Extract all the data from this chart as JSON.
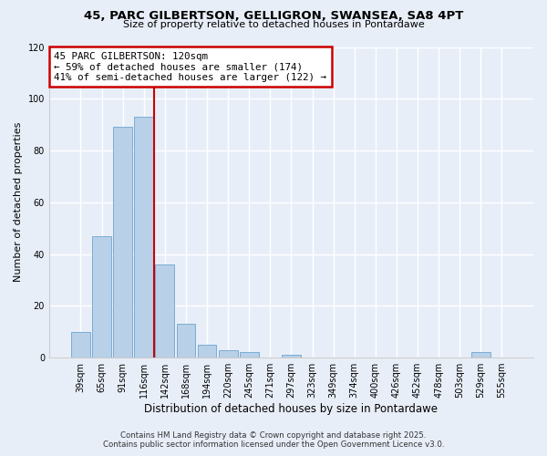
{
  "title": "45, PARC GILBERTSON, GELLIGRON, SWANSEA, SA8 4PT",
  "subtitle": "Size of property relative to detached houses in Pontardawe",
  "xlabel": "Distribution of detached houses by size in Pontardawe",
  "ylabel": "Number of detached properties",
  "categories": [
    "39sqm",
    "65sqm",
    "91sqm",
    "116sqm",
    "142sqm",
    "168sqm",
    "194sqm",
    "220sqm",
    "245sqm",
    "271sqm",
    "297sqm",
    "323sqm",
    "349sqm",
    "374sqm",
    "400sqm",
    "426sqm",
    "452sqm",
    "478sqm",
    "503sqm",
    "529sqm",
    "555sqm"
  ],
  "values": [
    10,
    47,
    89,
    93,
    36,
    13,
    5,
    3,
    2,
    0,
    1,
    0,
    0,
    0,
    0,
    0,
    0,
    0,
    0,
    2,
    0
  ],
  "bar_color": "#b8d0e8",
  "bar_edge_color": "#7aadd4",
  "vline_x": 3.5,
  "vline_color": "#cc0000",
  "annotation_title": "45 PARC GILBERTSON: 120sqm",
  "annotation_line1": "← 59% of detached houses are smaller (174)",
  "annotation_line2": "41% of semi-detached houses are larger (122) →",
  "annotation_box_color": "#ffffff",
  "annotation_box_edge": "#cc0000",
  "ylim": [
    0,
    120
  ],
  "yticks": [
    0,
    20,
    40,
    60,
    80,
    100,
    120
  ],
  "footer1": "Contains HM Land Registry data © Crown copyright and database right 2025.",
  "footer2": "Contains public sector information licensed under the Open Government Licence v3.0.",
  "background_color": "#e8eef8",
  "grid_color": "#ffffff",
  "title_fontsize": 9.5,
  "subtitle_fontsize": 8,
  "ylabel_fontsize": 8,
  "xlabel_fontsize": 8.5,
  "tick_fontsize": 7,
  "footer_fontsize": 6.2
}
